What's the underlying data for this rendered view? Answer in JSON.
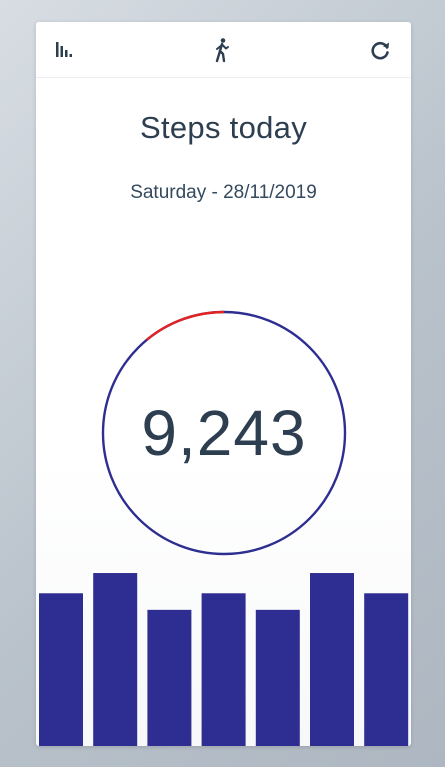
{
  "toolbar": {
    "left_icon": "bar-chart-icon",
    "center_icon": "walking-person-icon",
    "right_icon": "refresh-icon",
    "icon_color": "#2c3e50"
  },
  "header": {
    "title": "Steps today",
    "date": "Saturday - 28/11/2019"
  },
  "progress": {
    "steps_text": "9,243",
    "remaining_fraction": 0.11,
    "ring_color": "#2e2d91",
    "remaining_color": "#e32222"
  },
  "weekly_bars": {
    "color": "#2e2d91",
    "values": [
      0.83,
      0.94,
      0.74,
      0.83,
      0.74,
      0.94,
      0.83
    ]
  }
}
